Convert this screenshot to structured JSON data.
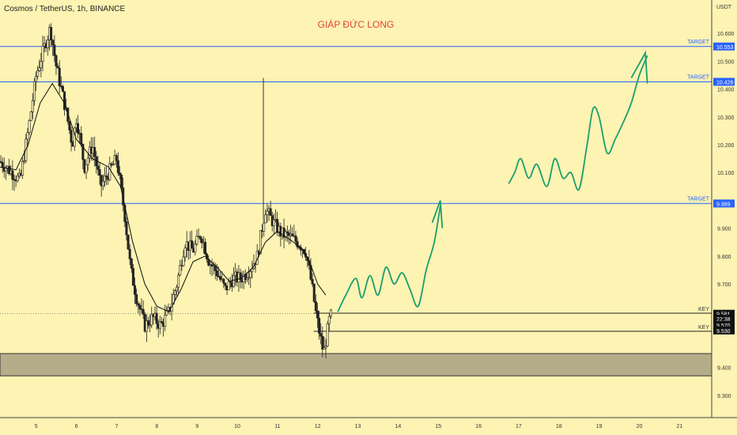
{
  "chart_data": {
    "type": "candlestick",
    "symbol_title": "Cosmos / TetherUS, 1h, BINANCE",
    "annotation_title": "GIÁP ĐỨC LONG",
    "unit": "USDT",
    "y_ticks": [
      "10.600",
      "10.500",
      "10.400",
      "10.300",
      "10.200",
      "10.100",
      "9.900",
      "9.800",
      "9.700",
      "9.400",
      "9.300"
    ],
    "x_ticks": [
      "5",
      "6",
      "7",
      "8",
      "9",
      "10",
      "11",
      "12",
      "13",
      "14",
      "15",
      "16",
      "17",
      "18",
      "19",
      "20",
      "21"
    ],
    "ylim": [
      9.22,
      10.72
    ],
    "xlim": [
      4.1,
      21.8
    ],
    "target_lines": [
      {
        "label": "TARGET",
        "price": "10.553"
      },
      {
        "label": "TARGET",
        "price": "10.426"
      },
      {
        "label": "TARGET",
        "price": "9.989"
      }
    ],
    "key_levels": [
      {
        "label": "KEY",
        "value": 9.595
      },
      {
        "label": "KEY",
        "value": 9.53
      }
    ],
    "price_labels": [
      {
        "text": "9.581",
        "y": 9.593
      },
      {
        "text": "22:38",
        "y": 9.575
      },
      {
        "text": "9.570",
        "y": 9.553
      },
      {
        "text": "9.530",
        "y": 9.533
      }
    ],
    "support_zone": [
      9.37,
      9.45
    ],
    "current_price": 9.594,
    "price_path": [
      [
        4.1,
        10.14
      ],
      [
        4.4,
        10.1
      ],
      [
        4.6,
        10.07
      ],
      [
        4.8,
        10.25
      ],
      [
        5.0,
        10.45
      ],
      [
        5.2,
        10.55
      ],
      [
        5.35,
        10.62
      ],
      [
        5.5,
        10.48
      ],
      [
        5.7,
        10.35
      ],
      [
        5.9,
        10.2
      ],
      [
        6.0,
        10.3
      ],
      [
        6.2,
        10.12
      ],
      [
        6.4,
        10.2
      ],
      [
        6.6,
        10.05
      ],
      [
        6.8,
        10.1
      ],
      [
        7.0,
        10.15
      ],
      [
        7.2,
        9.95
      ],
      [
        7.35,
        9.75
      ],
      [
        7.5,
        9.65
      ],
      [
        7.7,
        9.55
      ],
      [
        7.9,
        9.58
      ],
      [
        8.1,
        9.55
      ],
      [
        8.3,
        9.6
      ],
      [
        8.5,
        9.7
      ],
      [
        8.7,
        9.85
      ],
      [
        8.9,
        9.82
      ],
      [
        9.1,
        9.88
      ],
      [
        9.3,
        9.78
      ],
      [
        9.5,
        9.74
      ],
      [
        9.7,
        9.68
      ],
      [
        9.9,
        9.72
      ],
      [
        10.1,
        9.72
      ],
      [
        10.3,
        9.75
      ],
      [
        10.5,
        9.8
      ],
      [
        10.7,
        9.97
      ],
      [
        10.9,
        9.92
      ],
      [
        11.1,
        9.88
      ],
      [
        11.3,
        9.87
      ],
      [
        11.5,
        9.85
      ],
      [
        11.7,
        9.82
      ],
      [
        11.85,
        9.7
      ],
      [
        11.95,
        9.6
      ],
      [
        12.05,
        9.52
      ],
      [
        12.15,
        9.45
      ],
      [
        12.3,
        9.58
      ],
      [
        12.35,
        9.59
      ]
    ],
    "sma_path": [
      [
        4.1,
        10.12
      ],
      [
        4.5,
        10.11
      ],
      [
        4.8,
        10.2
      ],
      [
        5.1,
        10.35
      ],
      [
        5.4,
        10.42
      ],
      [
        5.7,
        10.35
      ],
      [
        6.0,
        10.22
      ],
      [
        6.4,
        10.15
      ],
      [
        6.8,
        10.12
      ],
      [
        7.1,
        10.05
      ],
      [
        7.4,
        9.85
      ],
      [
        7.7,
        9.7
      ],
      [
        8.0,
        9.62
      ],
      [
        8.3,
        9.6
      ],
      [
        8.6,
        9.68
      ],
      [
        8.9,
        9.78
      ],
      [
        9.2,
        9.8
      ],
      [
        9.5,
        9.76
      ],
      [
        9.8,
        9.71
      ],
      [
        10.1,
        9.72
      ],
      [
        10.4,
        9.76
      ],
      [
        10.7,
        9.85
      ],
      [
        11.0,
        9.89
      ],
      [
        11.3,
        9.86
      ],
      [
        11.6,
        9.83
      ],
      [
        11.8,
        9.78
      ],
      [
        12.0,
        9.7
      ],
      [
        12.2,
        9.66
      ]
    ],
    "big_wick": {
      "x": 10.65,
      "high": 10.44,
      "low": 9.93
    },
    "projection_1": [
      [
        12.5,
        9.6
      ],
      [
        12.7,
        9.66
      ],
      [
        12.95,
        9.72
      ],
      [
        13.1,
        9.65
      ],
      [
        13.3,
        9.73
      ],
      [
        13.5,
        9.66
      ],
      [
        13.7,
        9.76
      ],
      [
        13.9,
        9.7
      ],
      [
        14.1,
        9.74
      ],
      [
        14.3,
        9.68
      ],
      [
        14.5,
        9.62
      ],
      [
        14.7,
        9.75
      ],
      [
        14.9,
        9.85
      ],
      [
        15.05,
        9.98
      ]
    ],
    "projection_1_arrow": [
      [
        14.85,
        9.92
      ],
      [
        15.05,
        10.0
      ],
      [
        15.1,
        9.9
      ]
    ],
    "projection_2": [
      [
        16.75,
        10.06
      ],
      [
        16.9,
        10.1
      ],
      [
        17.05,
        10.15
      ],
      [
        17.25,
        10.08
      ],
      [
        17.45,
        10.13
      ],
      [
        17.7,
        10.05
      ],
      [
        17.9,
        10.15
      ],
      [
        18.1,
        10.08
      ],
      [
        18.3,
        10.1
      ],
      [
        18.5,
        10.04
      ],
      [
        18.7,
        10.2
      ],
      [
        18.85,
        10.33
      ],
      [
        19.0,
        10.3
      ],
      [
        19.2,
        10.17
      ],
      [
        19.4,
        10.22
      ],
      [
        19.6,
        10.28
      ],
      [
        19.8,
        10.35
      ],
      [
        20.0,
        10.45
      ],
      [
        20.2,
        10.52
      ]
    ],
    "projection_2_arrow": [
      [
        19.8,
        10.44
      ],
      [
        20.15,
        10.53
      ],
      [
        20.2,
        10.42
      ]
    ],
    "colors": {
      "bg": "#fdf3b3",
      "candle": "#222222",
      "target_line": "#2962ff",
      "label_bg": "#2962ff",
      "projection": "#1b9e6f",
      "zone_fill": "#b5ad8a",
      "zone_stroke": "#333333",
      "title": "#e0433b"
    }
  }
}
